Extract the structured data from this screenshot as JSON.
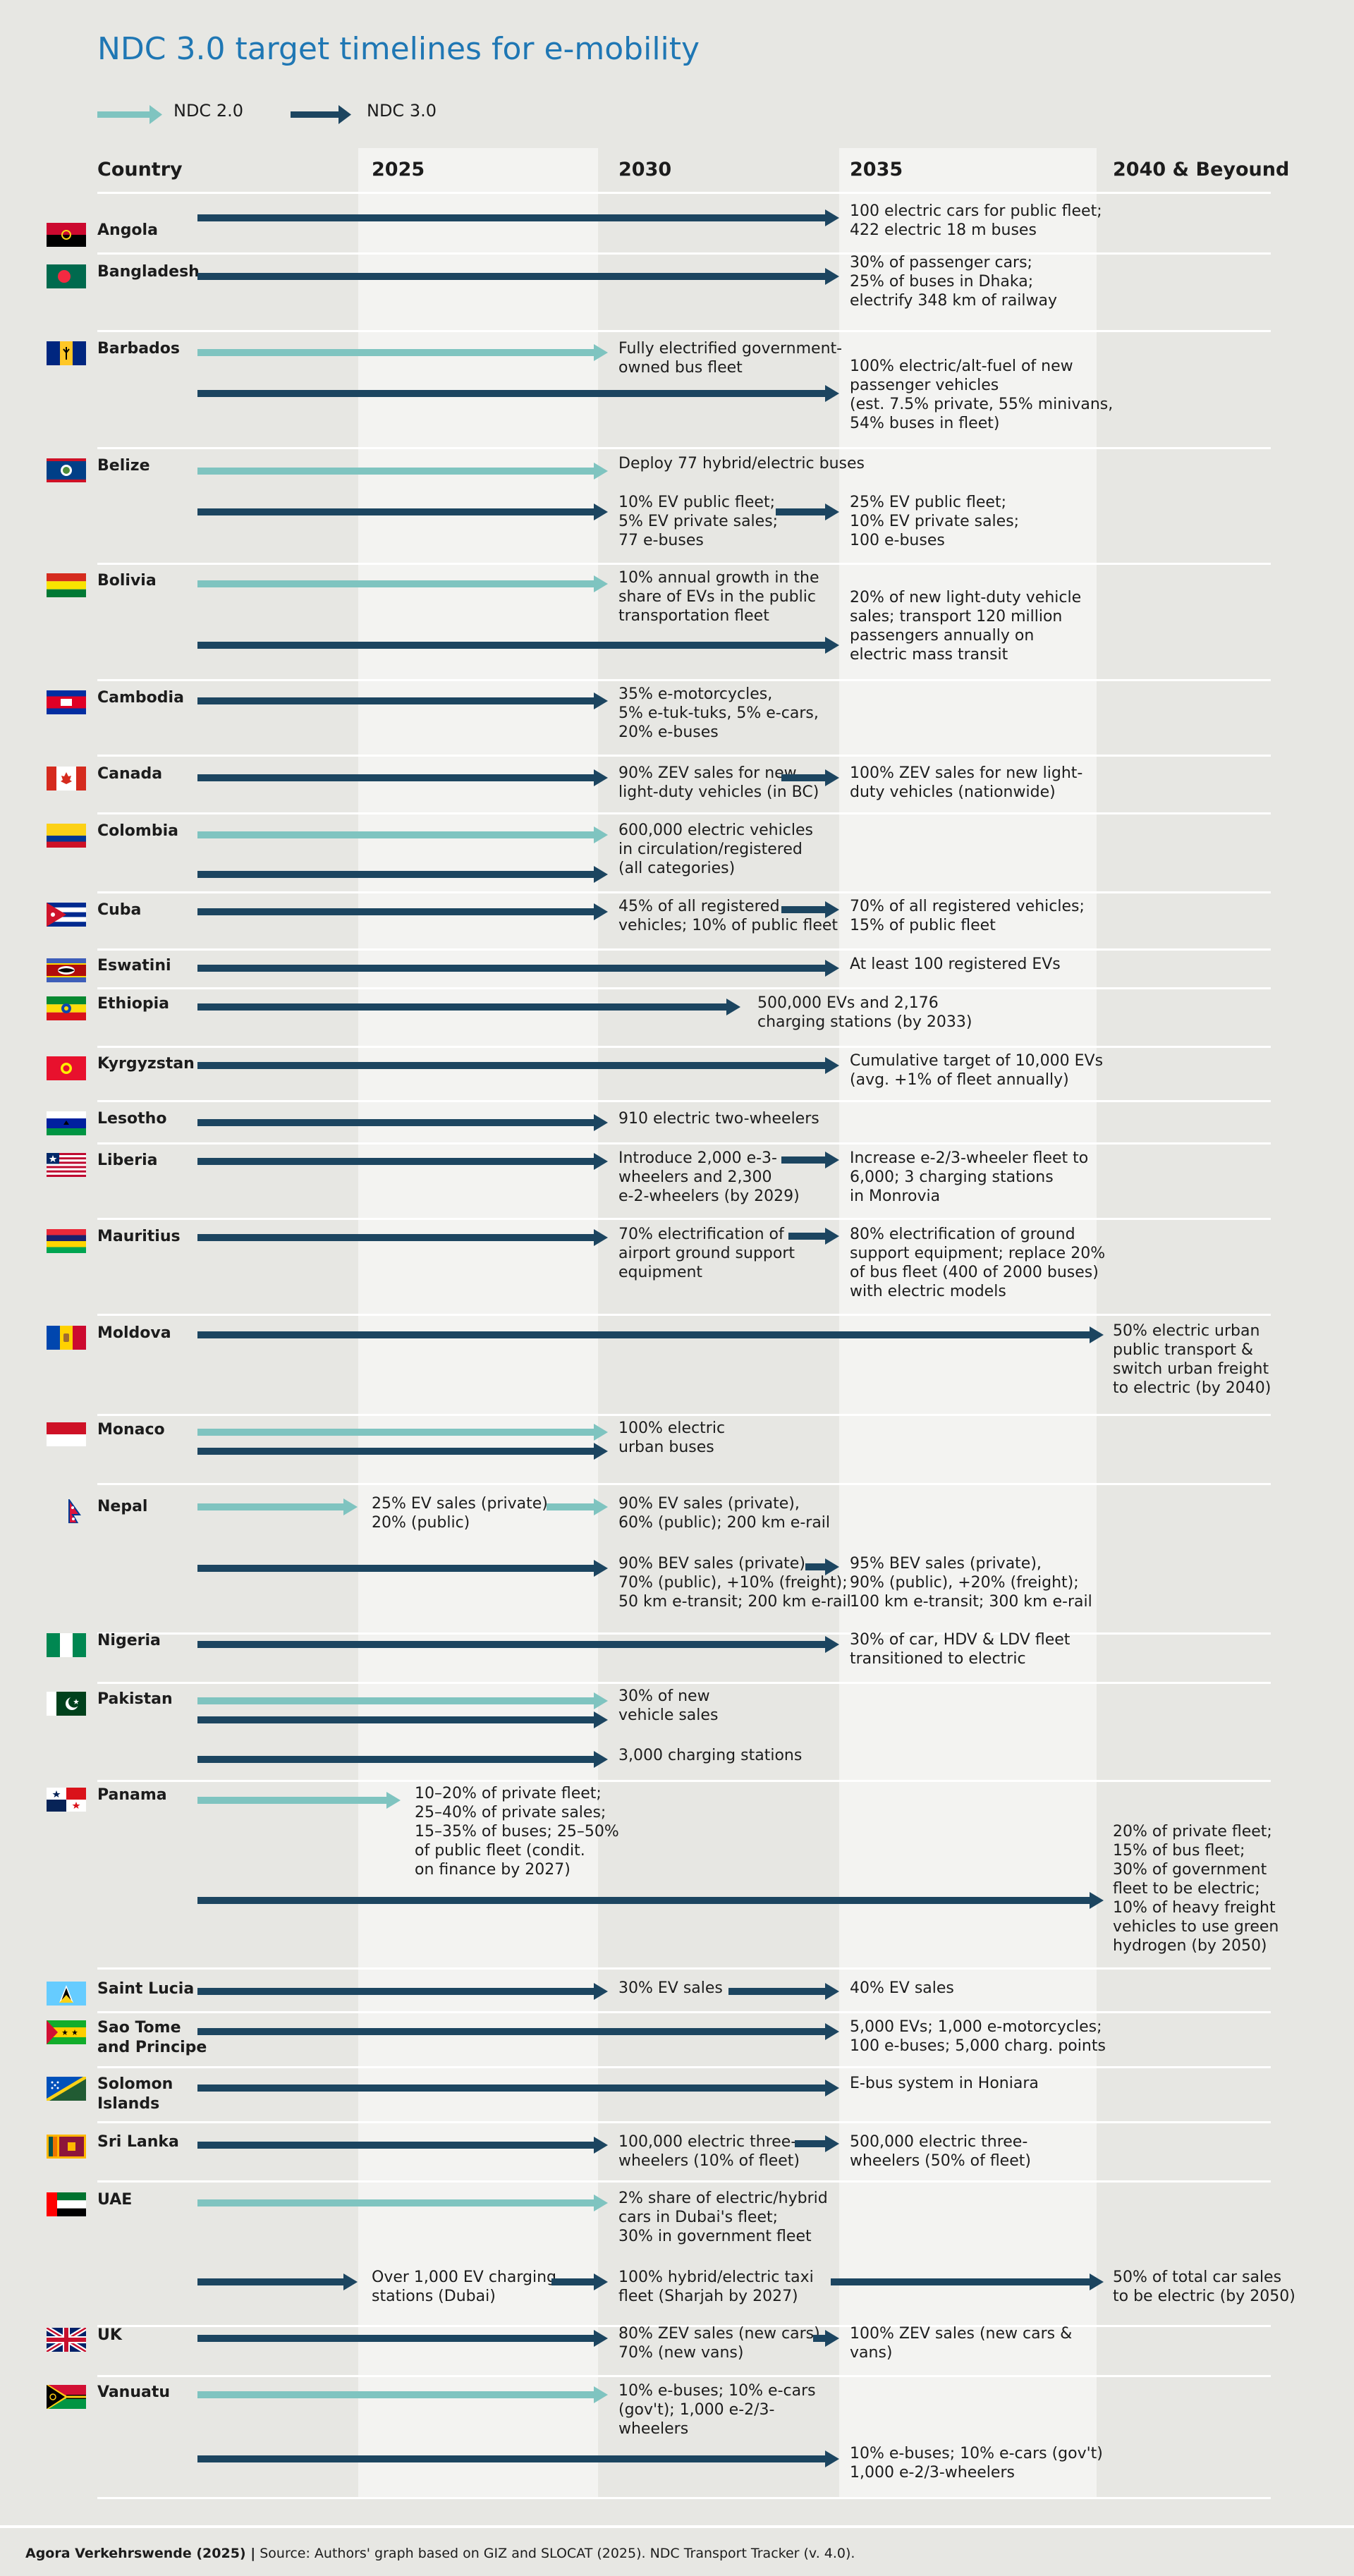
{
  "title": "NDC 3.0 target timelines for e-mobility",
  "colors": {
    "ndc20": "#7fc4c0",
    "ndc30": "#1c4560",
    "title": "#1f77b4",
    "background": "#e7e7e3",
    "band_light": "#f3f3f1"
  },
  "legend": [
    {
      "label": "NDC 2.0",
      "color": "#7fc4c0"
    },
    {
      "label": "NDC 3.0",
      "color": "#1c4560"
    }
  ],
  "headers": {
    "country": "Country",
    "y2025": "2025",
    "y2030": "2030",
    "y2035": "2035",
    "y2040": "2040 & Beyound"
  },
  "rows": [
    {
      "country": "Angola",
      "flag": "Angola",
      "arrows": [
        {
          "type": "ndc30",
          "from": 2025,
          "to": 2035,
          "text": "100 electric cars for public fleet;\n422 electric 18 m buses"
        }
      ]
    },
    {
      "country": "Bangladesh",
      "flag": "Bangladesh",
      "arrows": [
        {
          "type": "ndc30",
          "from": 2025,
          "to": 2035,
          "text": "30% of passenger cars;\n25% of buses in Dhaka;\nelectrify 348 km of railway"
        }
      ]
    },
    {
      "country": "Barbados",
      "flag": "Barbados",
      "arrows": [
        {
          "type": "ndc20",
          "from": 2025,
          "to": 2030,
          "text": "Fully electrified government-\nowned bus fleet"
        },
        {
          "type": "ndc30",
          "from": 2025,
          "to": 2035,
          "text": "100% electric/alt-fuel of new\npassenger vehicles\n(est. 7.5% private, 55% minivans,\n54% buses in fleet)"
        }
      ]
    },
    {
      "country": "Belize",
      "flag": "Belize",
      "arrows": [
        {
          "type": "ndc20",
          "from": 2025,
          "to": 2030,
          "text": "Deploy 77 hybrid/electric buses"
        },
        {
          "type": "ndc30",
          "from": 2025,
          "to": 2030,
          "text": "10% EV public fleet;\n5% EV private sales;\n77 e-buses"
        },
        {
          "type": "ndc30",
          "from": 2030,
          "to": 2035,
          "text": "25% EV public fleet;\n10% EV private sales;\n100 e-buses"
        }
      ]
    },
    {
      "country": "Bolivia",
      "flag": "Bolivia",
      "arrows": [
        {
          "type": "ndc20",
          "from": 2025,
          "to": 2030,
          "text": "10% annual growth in the\nshare of EVs in the public\ntransportation fleet"
        },
        {
          "type": "ndc30",
          "from": 2025,
          "to": 2035,
          "text": "20% of new light-duty vehicle\nsales; transport 120 million\npassengers annually on\nelectric mass transit"
        }
      ]
    },
    {
      "country": "Cambodia",
      "flag": "Cambodia",
      "arrows": [
        {
          "type": "ndc30",
          "from": 2025,
          "to": 2030,
          "text": "35% e-motorcycles,\n5% e-tuk-tuks, 5% e-cars,\n20% e-buses"
        }
      ]
    },
    {
      "country": "Canada",
      "flag": "Canada",
      "arrows": [
        {
          "type": "ndc30",
          "from": 2025,
          "to": 2030,
          "text": "90% ZEV sales for new\nlight-duty vehicles (in BC)"
        },
        {
          "type": "ndc30",
          "from": 2030,
          "to": 2035,
          "text": "100% ZEV sales for new light-\nduty vehicles (nationwide)"
        }
      ]
    },
    {
      "country": "Colombia",
      "flag": "Colombia",
      "arrows": [
        {
          "type": "ndc20",
          "from": 2025,
          "to": 2030,
          "text": "600,000 electric vehicles\nin circulation/registered\n(all categories)"
        },
        {
          "type": "ndc30",
          "from": 2025,
          "to": 2030,
          "text": ""
        }
      ]
    },
    {
      "country": "Cuba",
      "flag": "Cuba",
      "arrows": [
        {
          "type": "ndc30",
          "from": 2025,
          "to": 2030,
          "text": "45% of all registered\nvehicles; 10% of public fleet"
        },
        {
          "type": "ndc30",
          "from": 2030,
          "to": 2035,
          "text": "70% of all registered vehicles;\n15% of public fleet"
        }
      ]
    },
    {
      "country": "Eswatini",
      "flag": "Eswatini",
      "arrows": [
        {
          "type": "ndc30",
          "from": 2025,
          "to": 2035,
          "text": "At least 100 registered EVs"
        }
      ]
    },
    {
      "country": "Ethiopia",
      "flag": "Ethiopia",
      "arrows": [
        {
          "type": "ndc30",
          "from": 2025,
          "to": 2033,
          "text": "500,000 EVs and 2,176\ncharging stations (by 2033)"
        }
      ]
    },
    {
      "country": "Kyrgyzstan",
      "flag": "Kyrgyzstan",
      "arrows": [
        {
          "type": "ndc30",
          "from": 2025,
          "to": 2035,
          "text": "Cumulative target of 10,000 EVs\n(avg. +1% of fleet annually)"
        }
      ]
    },
    {
      "country": "Lesotho",
      "flag": "Lesotho",
      "arrows": [
        {
          "type": "ndc30",
          "from": 2025,
          "to": 2030,
          "text": "910 electric two-wheelers"
        }
      ]
    },
    {
      "country": "Liberia",
      "flag": "Liberia",
      "arrows": [
        {
          "type": "ndc30",
          "from": 2025,
          "to": 2030,
          "text": "Introduce 2,000 e-3-\nwheelers and 2,300\ne-2-wheelers (by 2029)"
        },
        {
          "type": "ndc30",
          "from": 2030,
          "to": 2035,
          "text": "Increase e-2/3-wheeler fleet to\n6,000; 3 charging stations\nin Monrovia"
        }
      ]
    },
    {
      "country": "Mauritius",
      "flag": "Mauritius",
      "arrows": [
        {
          "type": "ndc30",
          "from": 2025,
          "to": 2030,
          "text": "70% electrification of\nairport ground support\nequipment"
        },
        {
          "type": "ndc30",
          "from": 2030,
          "to": 2035,
          "text": "80% electrification of ground\nsupport equipment; replace 20%\nof bus fleet (400 of 2000 buses)\nwith electric models"
        }
      ]
    },
    {
      "country": "Moldova",
      "flag": "Moldova",
      "arrows": [
        {
          "type": "ndc30",
          "from": 2025,
          "to": 2040,
          "text": "50% electric urban\npublic transport &\nswitch urban freight\nto electric (by 2040)"
        }
      ]
    },
    {
      "country": "Monaco",
      "flag": "Monaco",
      "arrows": [
        {
          "type": "ndc20",
          "from": 2025,
          "to": 2030,
          "text": "100% electric\nurban buses"
        },
        {
          "type": "ndc30",
          "from": 2025,
          "to": 2030,
          "text": ""
        }
      ]
    },
    {
      "country": "Nepal",
      "flag": "Nepal",
      "arrows": [
        {
          "type": "ndc20",
          "from": 2020,
          "to": 2025,
          "text": "25% EV sales (private),\n20% (public)"
        },
        {
          "type": "ndc20",
          "from": 2025,
          "to": 2030,
          "text": "90% EV sales (private),\n60% (public); 200 km e-rail"
        },
        {
          "type": "ndc30",
          "from": 2025,
          "to": 2030,
          "text": "90% BEV sales (private),\n70% (public), +10% (freight);\n50 km e-transit; 200 km e-rail"
        },
        {
          "type": "ndc30",
          "from": 2030,
          "to": 2035,
          "text": "95% BEV sales (private),\n90% (public), +20% (freight);\n100 km e-transit; 300 km e-rail"
        }
      ]
    },
    {
      "country": "Nigeria",
      "flag": "Nigeria",
      "arrows": [
        {
          "type": "ndc30",
          "from": 2025,
          "to": 2035,
          "text": "30% of car, HDV & LDV fleet\ntransitioned to electric"
        }
      ]
    },
    {
      "country": "Pakistan",
      "flag": "Pakistan",
      "arrows": [
        {
          "type": "ndc20",
          "from": 2025,
          "to": 2030,
          "text": "30% of new\nvehicle sales"
        },
        {
          "type": "ndc30",
          "from": 2025,
          "to": 2030,
          "text": ""
        },
        {
          "type": "ndc30",
          "from": 2025,
          "to": 2030,
          "text": "3,000 charging stations"
        }
      ]
    },
    {
      "country": "Panama",
      "flag": "Panama",
      "arrows": [
        {
          "type": "ndc20",
          "from": 2020,
          "to": 2027,
          "text": "10–20% of private fleet;\n25–40% of private sales;\n15–35% of buses; 25–50%\nof public fleet (condit.\non finance by 2027)"
        },
        {
          "type": "ndc30",
          "from": 2025,
          "to": 2040,
          "text": "20% of private fleet;\n15% of bus fleet;\n30% of government\nfleet to be electric;\n10% of heavy freight\nvehicles to use green\nhydrogen (by 2050)"
        }
      ]
    },
    {
      "country": "Saint Lucia",
      "flag": "Saint Lucia",
      "arrows": [
        {
          "type": "ndc30",
          "from": 2025,
          "to": 2030,
          "text": "30% EV sales"
        },
        {
          "type": "ndc30",
          "from": 2030,
          "to": 2035,
          "text": "40% EV sales"
        }
      ]
    },
    {
      "country": "Sao Tome\nand Principe",
      "flag": "Sao Tome and Principe",
      "arrows": [
        {
          "type": "ndc30",
          "from": 2025,
          "to": 2035,
          "text": "5,000 EVs; 1,000 e-motorcycles;\n100 e-buses; 5,000 charg. points"
        }
      ]
    },
    {
      "country": "Solomon\nIslands",
      "flag": "Solomon Islands",
      "arrows": [
        {
          "type": "ndc30",
          "from": 2025,
          "to": 2035,
          "text": "E-bus system in Honiara"
        }
      ]
    },
    {
      "country": "Sri Lanka",
      "flag": "Sri Lanka",
      "arrows": [
        {
          "type": "ndc30",
          "from": 2025,
          "to": 2030,
          "text": "100,000 electric three-\nwheelers (10% of fleet)"
        },
        {
          "type": "ndc30",
          "from": 2030,
          "to": 2035,
          "text": "500,000 electric three-\nwheelers (50% of fleet)"
        }
      ]
    },
    {
      "country": "UAE",
      "flag": "UAE",
      "arrows": [
        {
          "type": "ndc20",
          "from": 2025,
          "to": 2030,
          "text": "2% share of electric/hybrid\ncars in Dubai's fleet;\n30% in government fleet"
        },
        {
          "type": "ndc30",
          "from": 2020,
          "to": 2025,
          "text": "Over 1,000 EV charging\nstations (Dubai)"
        },
        {
          "type": "ndc30",
          "from": 2025,
          "to": 2030,
          "text": "100% hybrid/electric taxi\nfleet (Sharjah by 2027)"
        },
        {
          "type": "ndc30",
          "from": 2030,
          "to": 2040,
          "text": "50% of total car sales\nto be electric (by 2050)"
        }
      ]
    },
    {
      "country": "UK",
      "flag": "UK",
      "arrows": [
        {
          "type": "ndc30",
          "from": 2025,
          "to": 2030,
          "text": "80% ZEV sales (new cars),\n70% (new vans)"
        },
        {
          "type": "ndc30",
          "from": 2030,
          "to": 2035,
          "text": "100% ZEV sales (new cars &\nvans)"
        }
      ]
    },
    {
      "country": "Vanuatu",
      "flag": "Vanuatu",
      "arrows": [
        {
          "type": "ndc20",
          "from": 2025,
          "to": 2030,
          "text": "10% e-buses; 10% e-cars\n(gov't); 1,000 e-2/3-\nwheelers"
        },
        {
          "type": "ndc30",
          "from": 2025,
          "to": 2035,
          "text": "10% e-buses; 10% e-cars (gov't)\n1,000 e-2/3-wheelers"
        }
      ]
    }
  ],
  "footer": {
    "source_bold": "Agora Verkehrswende (2025) |",
    "source": " Source: Authors' graph based on GIZ and SLOCAT (2025). NDC Transport Tracker (v. 4.0)."
  }
}
